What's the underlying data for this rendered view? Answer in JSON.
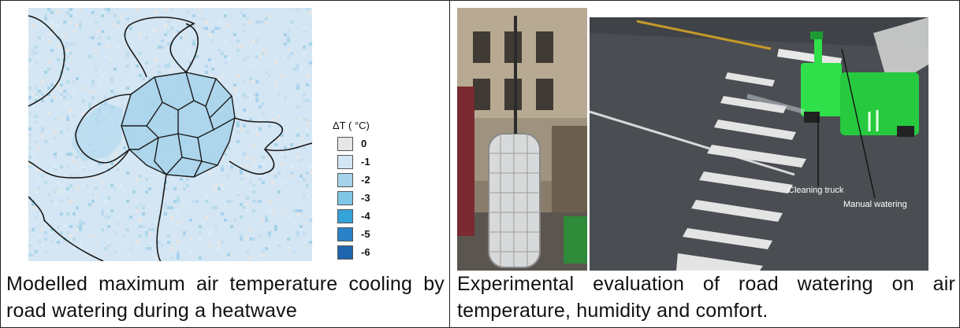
{
  "left_panel": {
    "legend_title": "ΔT ( °C)",
    "legend": [
      {
        "label": "0",
        "color": "#e6e6e6"
      },
      {
        "label": "-1",
        "color": "#d4e6f3"
      },
      {
        "label": "-2",
        "color": "#a6d2ea"
      },
      {
        "label": "-3",
        "color": "#7ec5e6"
      },
      {
        "label": "-4",
        "color": "#35a2d8"
      },
      {
        "label": "-5",
        "color": "#2a82c6"
      },
      {
        "label": "-6",
        "color": "#1f65ae"
      }
    ],
    "caption": "Modelled maximum air temperature cooling by road watering during a heatwave"
  },
  "right_panel": {
    "annotations": {
      "truck": "Cleaning truck",
      "watering": "Manual watering"
    },
    "caption": "Experimental evaluation of road watering on air temperature, humidity and comfort."
  }
}
